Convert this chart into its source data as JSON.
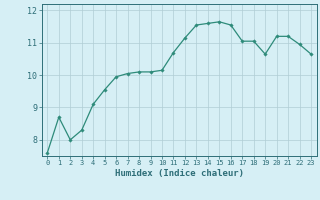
{
  "xlabel": "Humidex (Indice chaleur)",
  "ylabel": "",
  "x_values": [
    0,
    1,
    2,
    3,
    4,
    5,
    6,
    7,
    8,
    9,
    10,
    11,
    12,
    13,
    14,
    15,
    16,
    17,
    18,
    19,
    20,
    21,
    22,
    23
  ],
  "y_values": [
    7.6,
    8.7,
    8.0,
    8.3,
    9.1,
    9.55,
    9.95,
    10.05,
    10.1,
    10.1,
    10.15,
    10.7,
    11.15,
    11.55,
    11.6,
    11.65,
    11.55,
    11.05,
    11.05,
    10.65,
    11.2,
    11.2,
    10.95,
    10.65
  ],
  "line_color": "#2e8b7a",
  "marker": "D",
  "marker_size": 1.8,
  "linewidth": 0.9,
  "background_color": "#d6eff5",
  "grid_color": "#b0cdd4",
  "tick_color": "#2e6e78",
  "label_color": "#2e6e78",
  "ylim": [
    7.5,
    12.2
  ],
  "yticks": [
    8,
    9,
    10,
    11,
    12
  ],
  "xlim": [
    -0.5,
    23.5
  ],
  "xticks": [
    0,
    1,
    2,
    3,
    4,
    5,
    6,
    7,
    8,
    9,
    10,
    11,
    12,
    13,
    14,
    15,
    16,
    17,
    18,
    19,
    20,
    21,
    22,
    23
  ]
}
